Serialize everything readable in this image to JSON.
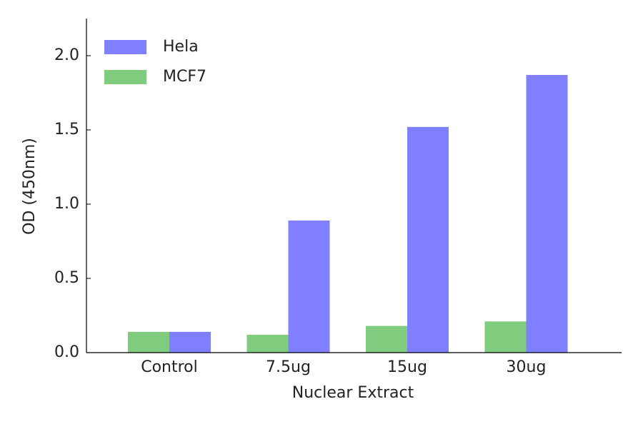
{
  "chart_data": {
    "type": "bar",
    "xlabel": "Nuclear Extract",
    "ylabel": "OD (450nm)",
    "categories": [
      "Control",
      "7.5ug",
      "15ug",
      "30ug"
    ],
    "series": [
      {
        "name": "Hela",
        "color": "#7f7fff",
        "values": [
          0.14,
          0.89,
          1.52,
          1.87
        ]
      },
      {
        "name": "MCF7",
        "color": "#7fcc7f",
        "values": [
          0.14,
          0.12,
          0.18,
          0.21
        ]
      }
    ],
    "ylim": [
      0,
      2.25
    ],
    "yticks": [
      {
        "value": 0,
        "label": "0.0"
      },
      {
        "value": 0.5,
        "label": "0.5"
      },
      {
        "value": 1,
        "label": "1.0"
      },
      {
        "value": 1.5,
        "label": "1.5"
      },
      {
        "value": 2,
        "label": "2.0"
      }
    ],
    "legend": "upper left"
  }
}
